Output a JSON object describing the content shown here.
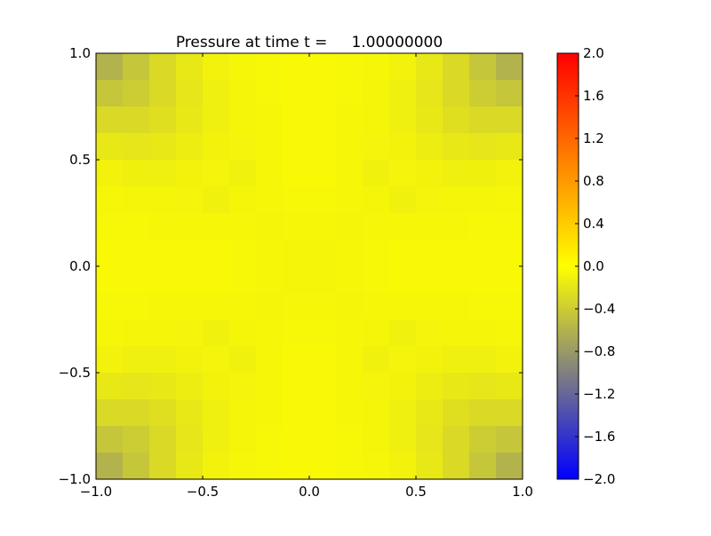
{
  "chart_data": {
    "type": "heatmap",
    "title": "Pressure at time t =     1.00000000",
    "xlim": [
      -1.0,
      1.0
    ],
    "ylim": [
      -1.0,
      1.0
    ],
    "xticks": [
      "−1.0",
      "−0.5",
      "0.0",
      "0.5",
      "1.0"
    ],
    "yticks": [
      "−1.0",
      "−0.5",
      "0.0",
      "0.5",
      "1.0"
    ],
    "xtick_values": [
      -1.0,
      -0.5,
      0.0,
      0.5,
      1.0
    ],
    "ytick_values": [
      -1.0,
      -0.5,
      0.0,
      0.5,
      1.0
    ],
    "colorbar": {
      "range": [
        -2.0,
        2.0
      ],
      "ticks": [
        "−2.0",
        "−1.6",
        "−1.2",
        "−0.8",
        "−0.4",
        "0.0",
        "0.4",
        "0.8",
        "1.2",
        "1.6",
        "2.0"
      ],
      "tick_values": [
        -2.0,
        -1.6,
        -1.2,
        -0.8,
        -0.4,
        0.0,
        0.4,
        0.8,
        1.2,
        1.6,
        2.0
      ],
      "colors": {
        "-2": "#0000ff",
        "-1": "#808080",
        "0": "#ffff00",
        "1": "#ff8000",
        "2": "#ff0000"
      }
    },
    "grid": false,
    "values": [
      [
        -0.6,
        -0.45,
        -0.3,
        -0.18,
        -0.1,
        -0.07,
        -0.06,
        -0.05,
        -0.05,
        -0.06,
        -0.07,
        -0.1,
        -0.18,
        -0.3,
        -0.45,
        -0.6
      ],
      [
        -0.45,
        -0.4,
        -0.3,
        -0.2,
        -0.12,
        -0.08,
        -0.06,
        -0.05,
        -0.05,
        -0.06,
        -0.08,
        -0.12,
        -0.2,
        -0.3,
        -0.4,
        -0.45
      ],
      [
        -0.3,
        -0.3,
        -0.25,
        -0.18,
        -0.12,
        -0.08,
        -0.07,
        -0.05,
        -0.05,
        -0.07,
        -0.08,
        -0.12,
        -0.18,
        -0.25,
        -0.3,
        -0.3
      ],
      [
        -0.18,
        -0.2,
        -0.18,
        -0.14,
        -0.1,
        -0.09,
        -0.07,
        -0.05,
        -0.05,
        -0.07,
        -0.09,
        -0.1,
        -0.14,
        -0.18,
        -0.2,
        -0.18
      ],
      [
        -0.1,
        -0.12,
        -0.12,
        -0.1,
        -0.09,
        -0.11,
        -0.07,
        -0.05,
        -0.05,
        -0.07,
        -0.11,
        -0.09,
        -0.1,
        -0.12,
        -0.12,
        -0.1
      ],
      [
        -0.07,
        -0.08,
        -0.08,
        -0.09,
        -0.11,
        -0.08,
        -0.07,
        -0.06,
        -0.06,
        -0.07,
        -0.08,
        -0.11,
        -0.09,
        -0.08,
        -0.08,
        -0.07
      ],
      [
        -0.06,
        -0.06,
        -0.07,
        -0.07,
        -0.07,
        -0.07,
        -0.08,
        -0.07,
        -0.07,
        -0.08,
        -0.07,
        -0.07,
        -0.07,
        -0.07,
        -0.06,
        -0.06
      ],
      [
        -0.05,
        -0.05,
        -0.05,
        -0.05,
        -0.05,
        -0.06,
        -0.07,
        -0.08,
        -0.08,
        -0.07,
        -0.06,
        -0.05,
        -0.05,
        -0.05,
        -0.05,
        -0.05
      ],
      [
        -0.05,
        -0.05,
        -0.05,
        -0.05,
        -0.05,
        -0.06,
        -0.07,
        -0.08,
        -0.08,
        -0.07,
        -0.06,
        -0.05,
        -0.05,
        -0.05,
        -0.05,
        -0.05
      ],
      [
        -0.06,
        -0.06,
        -0.07,
        -0.07,
        -0.07,
        -0.07,
        -0.08,
        -0.07,
        -0.07,
        -0.08,
        -0.07,
        -0.07,
        -0.07,
        -0.07,
        -0.06,
        -0.06
      ],
      [
        -0.07,
        -0.08,
        -0.08,
        -0.09,
        -0.11,
        -0.08,
        -0.07,
        -0.06,
        -0.06,
        -0.07,
        -0.08,
        -0.11,
        -0.09,
        -0.08,
        -0.08,
        -0.07
      ],
      [
        -0.1,
        -0.12,
        -0.12,
        -0.1,
        -0.09,
        -0.11,
        -0.07,
        -0.05,
        -0.05,
        -0.07,
        -0.11,
        -0.09,
        -0.1,
        -0.12,
        -0.12,
        -0.1
      ],
      [
        -0.18,
        -0.2,
        -0.18,
        -0.14,
        -0.1,
        -0.09,
        -0.07,
        -0.05,
        -0.05,
        -0.07,
        -0.09,
        -0.1,
        -0.14,
        -0.18,
        -0.2,
        -0.18
      ],
      [
        -0.3,
        -0.3,
        -0.25,
        -0.18,
        -0.12,
        -0.08,
        -0.07,
        -0.05,
        -0.05,
        -0.07,
        -0.08,
        -0.12,
        -0.18,
        -0.25,
        -0.3,
        -0.3
      ],
      [
        -0.45,
        -0.4,
        -0.3,
        -0.2,
        -0.12,
        -0.08,
        -0.06,
        -0.05,
        -0.05,
        -0.06,
        -0.08,
        -0.12,
        -0.2,
        -0.3,
        -0.4,
        -0.45
      ],
      [
        -0.6,
        -0.45,
        -0.3,
        -0.18,
        -0.1,
        -0.07,
        -0.06,
        -0.05,
        -0.05,
        -0.06,
        -0.07,
        -0.1,
        -0.18,
        -0.3,
        -0.45,
        -0.6
      ]
    ]
  }
}
